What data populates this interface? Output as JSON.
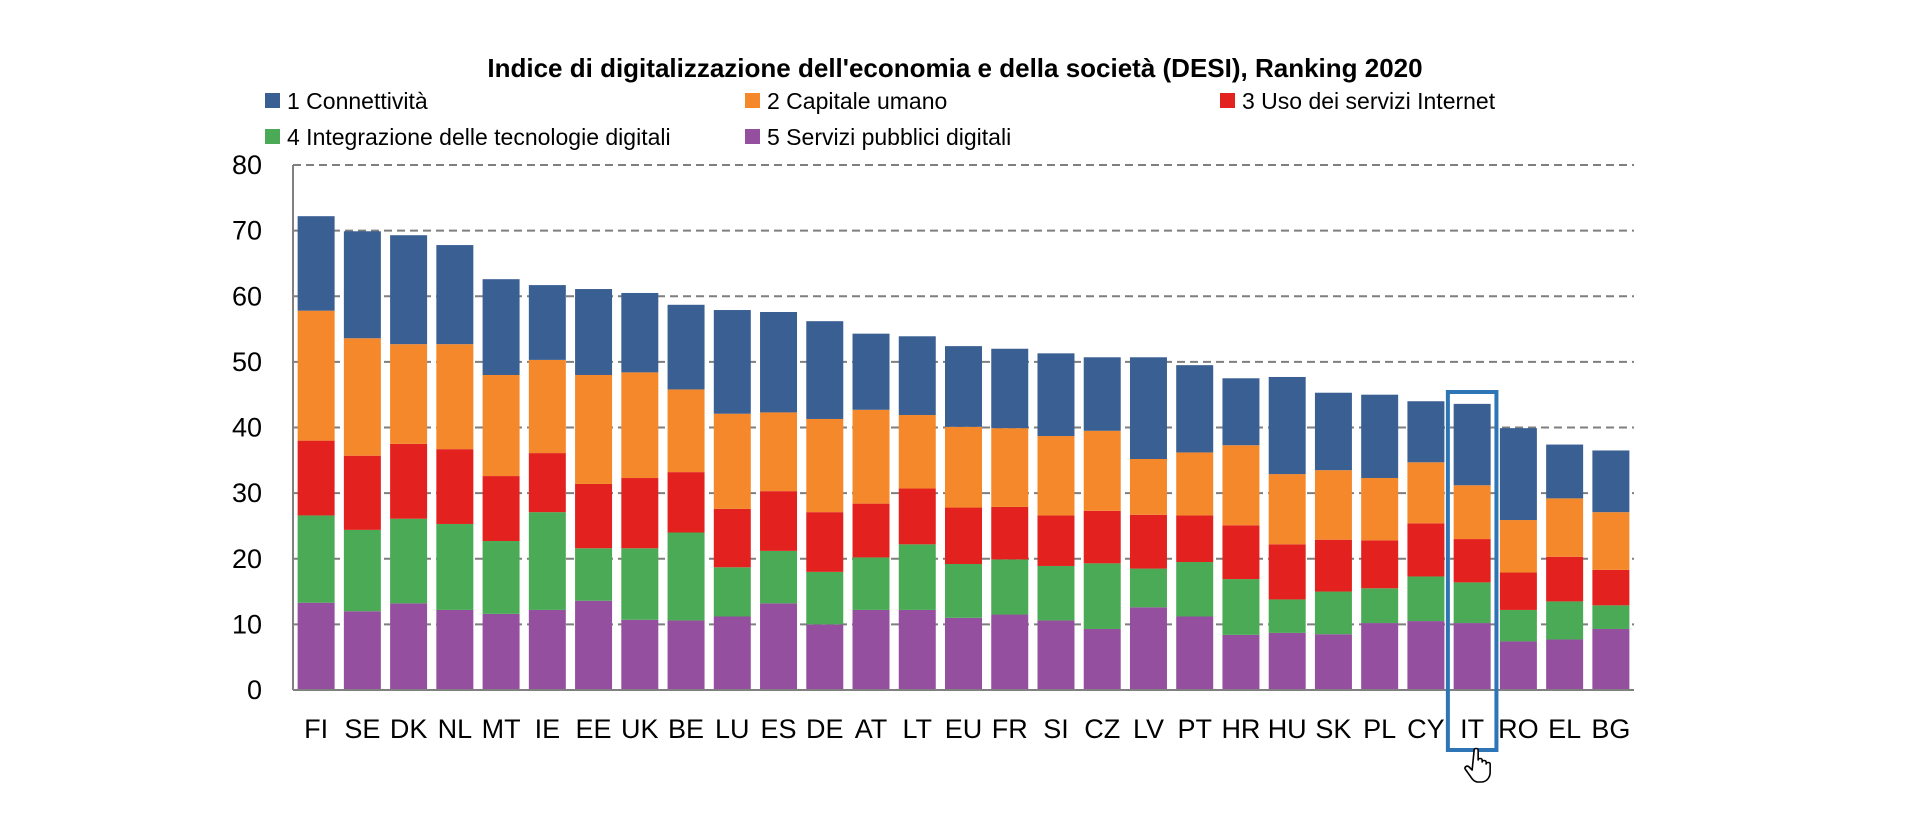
{
  "chart_data": {
    "type": "bar",
    "stacked": true,
    "title": "Indice di digitalizzazione dell'economia e della società (DESI), Ranking 2020",
    "xlabel": "",
    "ylabel": "",
    "ylim": [
      0,
      80
    ],
    "yticks": [
      0,
      10,
      20,
      30,
      40,
      50,
      60,
      70,
      80
    ],
    "grid": "horizontal-dashed",
    "legend_position": "top",
    "highlighted_category": "IT",
    "categories": [
      "FI",
      "SE",
      "DK",
      "NL",
      "MT",
      "IE",
      "EE",
      "UK",
      "BE",
      "LU",
      "ES",
      "DE",
      "AT",
      "LT",
      "EU",
      "FR",
      "SI",
      "CZ",
      "LV",
      "PT",
      "HR",
      "HU",
      "SK",
      "PL",
      "CY",
      "IT",
      "RO",
      "EL",
      "BG"
    ],
    "series": [
      {
        "name": "5 Servizi pubblici digitali",
        "color": "#954f9f",
        "values": [
          13.3,
          12.0,
          13.2,
          12.2,
          11.6,
          12.2,
          13.6,
          10.7,
          10.6,
          11.2,
          13.2,
          10.0,
          12.2,
          12.2,
          11.0,
          11.5,
          10.6,
          9.3,
          12.6,
          11.2,
          8.4,
          8.7,
          8.5,
          10.2,
          10.5,
          10.2,
          7.4,
          7.7,
          9.3
        ]
      },
      {
        "name": "4 Integrazione delle tecnologie digitali",
        "color": "#4aaa56",
        "values": [
          13.3,
          12.4,
          12.9,
          13.1,
          11.1,
          14.9,
          8.0,
          10.9,
          13.4,
          7.5,
          8.0,
          8.0,
          8.0,
          10.0,
          8.2,
          8.4,
          8.3,
          10.0,
          5.9,
          8.3,
          8.5,
          5.1,
          6.5,
          5.3,
          6.8,
          6.2,
          4.8,
          5.8,
          3.6
        ]
      },
      {
        "name": "3 Uso dei servizi Internet",
        "color": "#e3211f",
        "values": [
          11.4,
          11.3,
          11.4,
          11.4,
          9.9,
          9.0,
          9.8,
          10.7,
          9.2,
          8.9,
          9.1,
          9.1,
          8.2,
          8.5,
          8.6,
          8.0,
          7.7,
          8.0,
          8.2,
          7.1,
          8.2,
          8.4,
          7.9,
          7.3,
          8.1,
          6.6,
          5.7,
          6.8,
          5.4
        ]
      },
      {
        "name": "2 Capitale umano",
        "color": "#f4882a",
        "values": [
          19.8,
          17.9,
          15.2,
          16.0,
          15.4,
          14.2,
          16.6,
          16.1,
          12.6,
          14.5,
          12.0,
          14.2,
          14.3,
          11.2,
          12.3,
          12.0,
          12.1,
          12.2,
          8.5,
          9.6,
          12.2,
          10.7,
          10.6,
          9.5,
          9.3,
          8.2,
          8.0,
          8.9,
          8.8
        ]
      },
      {
        "name": "1 Connettività",
        "color": "#3a5f93",
        "values": [
          14.4,
          16.3,
          16.6,
          15.1,
          14.6,
          11.4,
          13.1,
          12.1,
          12.9,
          15.8,
          15.3,
          14.9,
          11.6,
          12.0,
          12.3,
          12.1,
          12.6,
          11.2,
          15.5,
          13.3,
          10.2,
          14.8,
          11.8,
          12.7,
          9.3,
          12.4,
          14.0,
          8.2,
          9.4
        ]
      }
    ],
    "legend": [
      {
        "label": "1 Connettività",
        "color": "#3a5f93"
      },
      {
        "label": "2 Capitale umano",
        "color": "#f4882a"
      },
      {
        "label": "3 Uso dei servizi Internet",
        "color": "#e3211f"
      },
      {
        "label": "4 Integrazione delle tecnologie digitali",
        "color": "#4aaa56"
      },
      {
        "label": "5 Servizi pubblici digitali",
        "color": "#954f9f"
      }
    ]
  }
}
